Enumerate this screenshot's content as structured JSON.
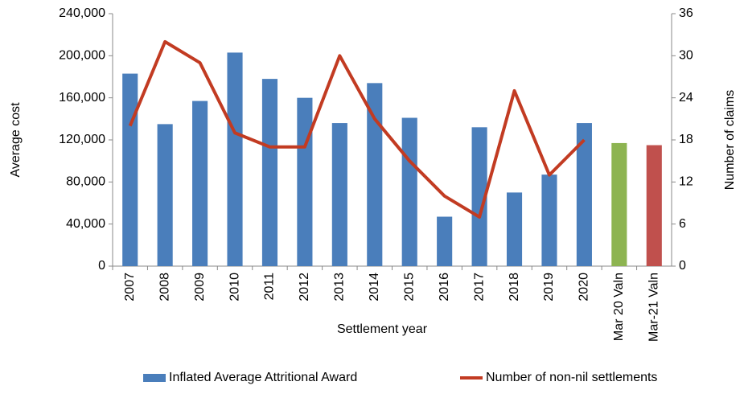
{
  "chart_data": {
    "type": "bar",
    "x_label": "Settlement year",
    "y_label": "Average cost",
    "y2_label": "Number of claims",
    "categories": [
      "2007",
      "2008",
      "2009",
      "2010",
      "2011",
      "2012",
      "2013",
      "2014",
      "2015",
      "2016",
      "2017",
      "2018",
      "2019",
      "2020",
      "Mar 20 Valn",
      "Mar-21 Valn"
    ],
    "series": [
      {
        "name": "Inflated Average Attritional Award",
        "type": "bar",
        "color": "#4a7ebb",
        "colors": [
          "#4a7ebb",
          "#4a7ebb",
          "#4a7ebb",
          "#4a7ebb",
          "#4a7ebb",
          "#4a7ebb",
          "#4a7ebb",
          "#4a7ebb",
          "#4a7ebb",
          "#4a7ebb",
          "#4a7ebb",
          "#4a7ebb",
          "#4a7ebb",
          "#4a7ebb",
          "#8db451",
          "#c0504d"
        ],
        "values": [
          183000,
          135000,
          157000,
          203000,
          178000,
          160000,
          136000,
          174000,
          141000,
          47000,
          132000,
          70000,
          87000,
          136000,
          117000,
          115000
        ]
      },
      {
        "name": "Number of non-nil settlements",
        "type": "line",
        "axis": "y2",
        "color": "#c23b22",
        "values": [
          20,
          32,
          29,
          19,
          17,
          17,
          30,
          21,
          15,
          10,
          7,
          25,
          13,
          18,
          null,
          null
        ]
      }
    ],
    "ylim": [
      0,
      240000
    ],
    "yticks": [
      0,
      {
        "value": 40000,
        "label": "40,000"
      },
      {
        "value": 80000,
        "label": "80,000"
      },
      {
        "value": 120000,
        "label": "120,000"
      },
      {
        "value": 160000,
        "label": "160,000"
      },
      {
        "value": 200000,
        "label": "200,000"
      },
      {
        "value": 240000,
        "label": "240,000"
      }
    ],
    "y2lim": [
      0,
      36
    ],
    "y2ticks": [
      0,
      6,
      12,
      18,
      24,
      30,
      36
    ],
    "grid": false,
    "legend": "bottom"
  }
}
